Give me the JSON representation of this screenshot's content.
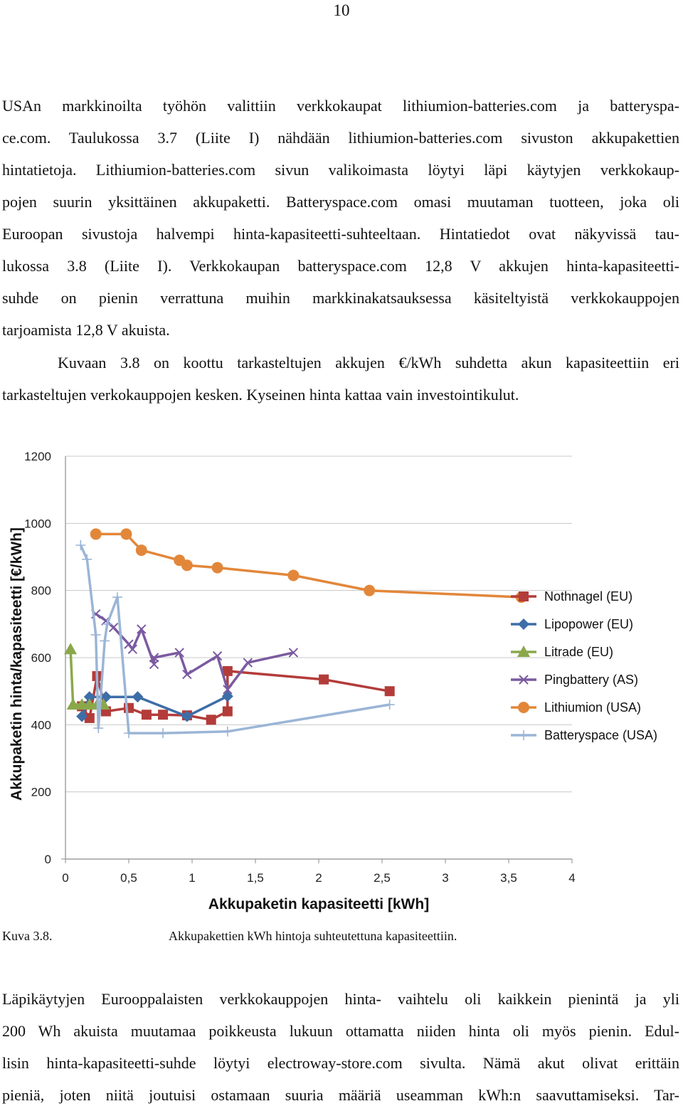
{
  "page_number": "10",
  "paragraph1": [
    "USAn markkinoilta työhön valittiin verkkokaupat lithiumion-batteries.com ja batteryspa-",
    "ce.com.  Taulukossa 3.7 (Liite I) nähdään lithiumion-batteries.com sivuston akkupakettien",
    "hintatietoja. Lithiumion-batteries.com sivun valikoimasta löytyi läpi käytyjen verkkokaup-",
    "pojen suurin yksittäinen akkupaketti. Batteryspace.com omasi muutaman tuotteen, joka oli",
    "Euroopan sivustoja halvempi hinta-kapasiteetti-suhteeltaan. Hintatiedot ovat näkyvissä tau-",
    "lukossa 3.8 (Liite I). Verkkokaupan batteryspace.com 12,8 V akkujen hinta-kapasiteetti-",
    "suhde on pienin verrattuna muihin markkinakatsauksessa käsiteltyistä verkkokauppojen",
    "tarjoamista 12,8 V akuista."
  ],
  "paragraph2": [
    "Kuvaan 3.8 on koottu tarkasteltujen akkujen €/kWh suhdetta akun kapasiteettiin eri",
    "tarkasteltujen verkokauppojen kesken. Kyseinen hinta kattaa vain investointikulut."
  ],
  "chart_data": {
    "type": "scatter",
    "xlabel": "Akkupaketin kapasiteetti [kWh]",
    "ylabel": "Akkupaketin hinta/kapasiteetti [€/kWh]",
    "xlim": [
      0,
      4
    ],
    "ylim": [
      0,
      1200
    ],
    "xticks": [
      0,
      0.5,
      1,
      1.5,
      2,
      2.5,
      3,
      3.5,
      4
    ],
    "xtick_labels": [
      "0",
      "0,5",
      "1",
      "1,5",
      "2",
      "2,5",
      "3",
      "3,5",
      "4"
    ],
    "yticks": [
      0,
      200,
      400,
      600,
      800,
      1000,
      1200
    ],
    "ytick_labels": [
      "0",
      "200",
      "400",
      "600",
      "800",
      "1000",
      "1200"
    ],
    "grid": "horizontal",
    "legend_position": "right",
    "series": [
      {
        "name": "Nothnagel (EU)",
        "color": "#b33c3a",
        "marker": "square",
        "points": [
          [
            0.13,
            455
          ],
          [
            0.19,
            420
          ],
          [
            0.25,
            545
          ],
          [
            0.32,
            440
          ],
          [
            0.5,
            450
          ],
          [
            0.64,
            430
          ],
          [
            0.77,
            430
          ],
          [
            0.96,
            428
          ],
          [
            1.15,
            415
          ],
          [
            1.28,
            440
          ],
          [
            1.28,
            560
          ],
          [
            2.04,
            535
          ],
          [
            2.56,
            500
          ]
        ]
      },
      {
        "name": "Lipopower (EU)",
        "color": "#3d6ea8",
        "marker": "diamond",
        "points": [
          [
            0.13,
            425
          ],
          [
            0.19,
            483
          ],
          [
            0.32,
            483
          ],
          [
            0.57,
            483
          ],
          [
            0.96,
            425
          ],
          [
            1.28,
            485
          ]
        ]
      },
      {
        "name": "Litrade (EU)",
        "color": "#8aa84a",
        "marker": "triangle",
        "points": [
          [
            0.04,
            625
          ],
          [
            0.06,
            460
          ],
          [
            0.13,
            460
          ],
          [
            0.19,
            460
          ],
          [
            0.25,
            460
          ],
          [
            0.3,
            460
          ]
        ]
      },
      {
        "name": "Pingbattery (AS)",
        "color": "#7b5aa0",
        "marker": "x",
        "points": [
          [
            0.24,
            730
          ],
          [
            0.32,
            710
          ],
          [
            0.38,
            690
          ],
          [
            0.5,
            640
          ],
          [
            0.53,
            625
          ],
          [
            0.6,
            685
          ],
          [
            0.7,
            580
          ],
          [
            0.7,
            600
          ],
          [
            0.9,
            615
          ],
          [
            0.96,
            550
          ],
          [
            1.2,
            605
          ],
          [
            1.28,
            505
          ],
          [
            1.44,
            585
          ],
          [
            1.8,
            615
          ]
        ]
      },
      {
        "name": "Lithiumion (USA)",
        "color": "#e2873a",
        "marker": "circle",
        "points": [
          [
            0.24,
            968
          ],
          [
            0.48,
            968
          ],
          [
            0.6,
            920
          ],
          [
            0.9,
            890
          ],
          [
            0.96,
            875
          ],
          [
            1.2,
            868
          ],
          [
            1.8,
            845
          ],
          [
            2.4,
            800
          ],
          [
            3.6,
            780
          ]
        ]
      },
      {
        "name": "Batteryspace (USA)",
        "color": "#9bb5d6",
        "marker": "plus",
        "points": [
          [
            0.12,
            935
          ],
          [
            0.17,
            893
          ],
          [
            0.24,
            668
          ],
          [
            0.26,
            390
          ],
          [
            0.31,
            650
          ],
          [
            0.33,
            700
          ],
          [
            0.41,
            780
          ],
          [
            0.5,
            375
          ],
          [
            0.77,
            375
          ],
          [
            1.28,
            380
          ],
          [
            2.56,
            460
          ]
        ]
      }
    ]
  },
  "caption": {
    "number": "Kuva 3.8.",
    "text": "Akkupakettien kWh hintoja suhteutettuna kapasiteettiin."
  },
  "paragraph3": [
    "Läpikäytyjen Eurooppalaisten verkkokauppojen hinta- vaihtelu oli kaikkein pienintä ja yli",
    "200 Wh akuista muutamaa poikkeusta lukuun ottamatta niiden hinta oli myös pienin. Edul-",
    "lisin hinta-kapasiteetti-suhde löytyi electroway-store.com sivulta. Nämä akut olivat erittäin",
    "pieniä, joten niitä joutuisi ostamaan suuria määriä useamman kWh:n saavuttamiseksi. Tar-"
  ]
}
